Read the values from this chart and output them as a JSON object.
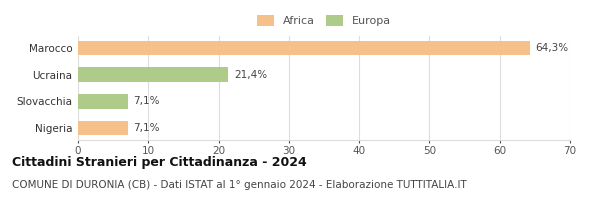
{
  "categories": [
    "Nigeria",
    "Slovacchia",
    "Ucraina",
    "Marocco"
  ],
  "values": [
    7.1,
    7.1,
    21.4,
    64.3
  ],
  "labels": [
    "7,1%",
    "7,1%",
    "21,4%",
    "64,3%"
  ],
  "colors": [
    "#F5C08A",
    "#AECB8A",
    "#AECB8A",
    "#F5C08A"
  ],
  "legend_items": [
    {
      "label": "Africa",
      "color": "#F5C08A"
    },
    {
      "label": "Europa",
      "color": "#AECB8A"
    }
  ],
  "xlim": [
    0,
    70
  ],
  "xticks": [
    0,
    10,
    20,
    30,
    40,
    50,
    60,
    70
  ],
  "title": "Cittadini Stranieri per Cittadinanza - 2024",
  "subtitle": "COMUNE DI DURONIA (CB) - Dati ISTAT al 1° gennaio 2024 - Elaborazione TUTTITALIA.IT",
  "title_fontsize": 9,
  "subtitle_fontsize": 7.5,
  "bar_height": 0.55,
  "background_color": "#ffffff",
  "grid_color": "#dddddd",
  "label_color": "#444444",
  "value_label_fontsize": 7.5,
  "tick_fontsize": 7.5,
  "category_fontsize": 7.5,
  "legend_fontsize": 8
}
